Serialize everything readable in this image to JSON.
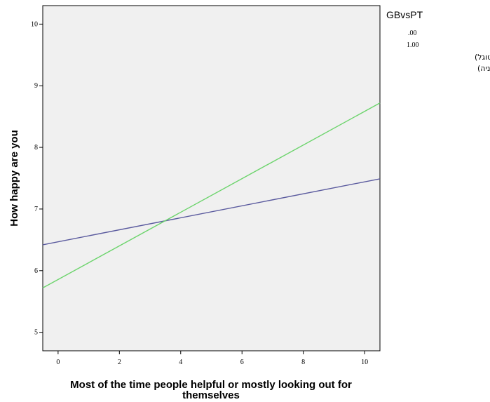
{
  "chart_data": {
    "type": "line",
    "xlabel_line1": "Most of the time people helpful or mostly looking out for",
    "xlabel_line2": "themselves",
    "ylabel": "How happy are you",
    "xlim": [
      -0.5,
      10.5
    ],
    "ylim": [
      4.7,
      10.3
    ],
    "xticks": [
      0,
      2,
      4,
      6,
      8,
      10
    ],
    "yticks": [
      5,
      6,
      7,
      8,
      9,
      10
    ],
    "grid": false,
    "legend_position": "right",
    "legend_title": "GBvsPT",
    "legend_values": [
      ".00",
      "1.00"
    ],
    "legend_labels": [
      "קולקטיביסטים (פורטוגל)",
      "אינדיבידואליסטים (בריטניה)"
    ],
    "series": [
      {
        "x": [
          -0.5,
          10.5
        ],
        "y": [
          6.42,
          7.49
        ],
        "color": "#5a5a9e"
      },
      {
        "x": [
          -0.5,
          10.5
        ],
        "y": [
          5.72,
          8.72
        ],
        "color": "#6cd46c"
      }
    ]
  }
}
